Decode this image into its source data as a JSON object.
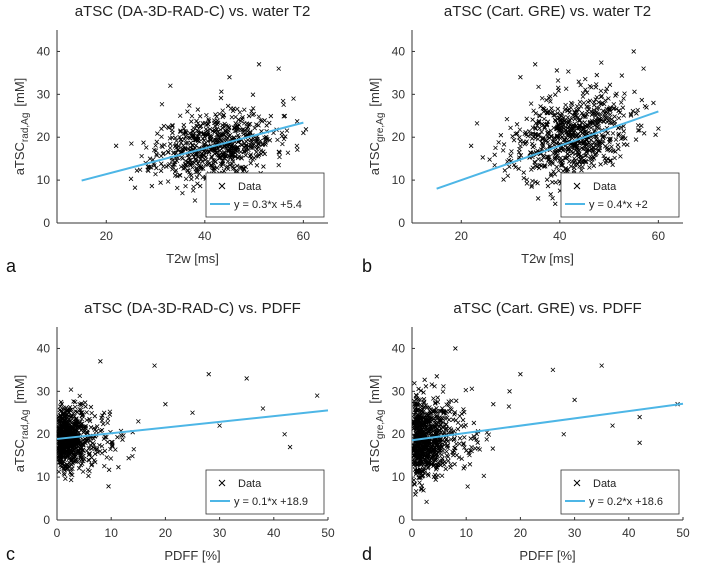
{
  "figure": {
    "panel_letters": [
      "a",
      "b",
      "c",
      "d"
    ]
  },
  "colors": {
    "data_marker": "#000000",
    "fit_line": "#4db6e6",
    "axes": "#333333",
    "background": "#ffffff"
  },
  "chart_data": [
    {
      "type": "scatter",
      "panel": "a",
      "title": "aTSC (DA-3D-RAD-C) vs. water T2",
      "xlabel": "T2w [ms]",
      "ylabel_main": "aTSC",
      "ylabel_sub": "rad,Ag",
      "ylabel_unit": "[mM]",
      "xlim": [
        10,
        65
      ],
      "ylim": [
        0,
        45
      ],
      "xticks": [
        "20",
        "40",
        "60"
      ],
      "xtick_values": [
        20,
        40,
        60
      ],
      "yticks": [
        "0",
        "10",
        "20",
        "30",
        "40"
      ],
      "ytick_values": [
        0,
        10,
        20,
        30,
        40
      ],
      "legend_data": "Data",
      "legend_fit": "y = 0.3*x +5.4",
      "legend_position": "bottom-right",
      "fit": {
        "slope": 0.3,
        "intercept": 5.4,
        "x_range": [
          15,
          60
        ]
      },
      "cloud": {
        "x_center": 42,
        "x_sd": 6,
        "y_center": 18,
        "y_sd": 4,
        "n": 700,
        "seed": 11
      },
      "outliers": [
        [
          22,
          18
        ],
        [
          28,
          14
        ],
        [
          33,
          32
        ],
        [
          55,
          36
        ],
        [
          60,
          21
        ],
        [
          51,
          37
        ],
        [
          35,
          25
        ],
        [
          45,
          34
        ],
        [
          58,
          29
        ]
      ]
    },
    {
      "type": "scatter",
      "panel": "b",
      "title": "aTSC (Cart. GRE) vs. water T2",
      "xlabel": "T2w [ms]",
      "ylabel_main": "aTSC",
      "ylabel_sub": "gre,Ag",
      "ylabel_unit": "[mM]",
      "xlim": [
        10,
        65
      ],
      "ylim": [
        0,
        45
      ],
      "xticks": [
        "20",
        "40",
        "60"
      ],
      "xtick_values": [
        20,
        40,
        60
      ],
      "yticks": [
        "0",
        "10",
        "20",
        "30",
        "40"
      ],
      "ytick_values": [
        0,
        10,
        20,
        30,
        40
      ],
      "legend_data": "Data",
      "legend_fit": "y = 0.4*x +2",
      "legend_position": "bottom-right",
      "fit": {
        "slope": 0.4,
        "intercept": 2,
        "x_range": [
          15,
          60
        ]
      },
      "cloud": {
        "x_center": 42,
        "x_sd": 6,
        "y_center": 20,
        "y_sd": 5,
        "n": 750,
        "seed": 23
      },
      "outliers": [
        [
          22,
          18
        ],
        [
          32,
          34
        ],
        [
          35,
          37
        ],
        [
          55,
          40
        ],
        [
          60,
          22
        ],
        [
          59,
          28
        ],
        [
          31,
          13
        ],
        [
          57,
          36
        ]
      ]
    },
    {
      "type": "scatter",
      "panel": "c",
      "title": "aTSC (DA-3D-RAD-C) vs. PDFF",
      "xlabel": "PDFF [%]",
      "ylabel_main": "aTSC",
      "ylabel_sub": "rad,Ag",
      "ylabel_unit": "[mM]",
      "xlim": [
        0,
        50
      ],
      "ylim": [
        0,
        45
      ],
      "xticks": [
        "0",
        "10",
        "20",
        "30",
        "40",
        "50"
      ],
      "xtick_values": [
        0,
        10,
        20,
        30,
        40,
        50
      ],
      "yticks": [
        "0",
        "10",
        "20",
        "30",
        "40"
      ],
      "ytick_values": [
        0,
        10,
        20,
        30,
        40
      ],
      "legend_data": "Data",
      "legend_fit": "y = 0.1*x +18.9",
      "legend_position": "bottom-right",
      "fit": {
        "slope": 0.133,
        "intercept": 18.9,
        "x_range": [
          0,
          50
        ]
      },
      "cloud": {
        "x_center": 2.5,
        "x_sd": 2.5,
        "y_center": 19,
        "y_sd": 3.5,
        "n": 800,
        "seed": 37
      },
      "outliers": [
        [
          8,
          37
        ],
        [
          18,
          36
        ],
        [
          28,
          34
        ],
        [
          35,
          33
        ],
        [
          43,
          17
        ],
        [
          42,
          20
        ],
        [
          48,
          29
        ],
        [
          20,
          27
        ],
        [
          30,
          22
        ],
        [
          25,
          25
        ],
        [
          15,
          23
        ],
        [
          38,
          26
        ]
      ]
    },
    {
      "type": "scatter",
      "panel": "d",
      "title": "aTSC (Cart. GRE) vs. PDFF",
      "xlabel": "PDFF [%]",
      "ylabel_main": "aTSC",
      "ylabel_sub": "gre,Ag",
      "ylabel_unit": "[mM]",
      "xlim": [
        0,
        50
      ],
      "ylim": [
        0,
        45
      ],
      "xticks": [
        "0",
        "10",
        "20",
        "30",
        "40",
        "50"
      ],
      "xtick_values": [
        0,
        10,
        20,
        30,
        40,
        50
      ],
      "yticks": [
        "0",
        "10",
        "20",
        "30",
        "40"
      ],
      "ytick_values": [
        0,
        10,
        20,
        30,
        40
      ],
      "legend_data": "Data",
      "legend_fit": "y = 0.2*x +18.6",
      "legend_position": "bottom-right",
      "fit": {
        "slope": 0.17,
        "intercept": 18.6,
        "x_range": [
          0,
          50
        ]
      },
      "cloud": {
        "x_center": 3,
        "x_sd": 3,
        "y_center": 19,
        "y_sd": 5,
        "n": 800,
        "seed": 53
      },
      "outliers": [
        [
          8,
          40
        ],
        [
          20,
          34
        ],
        [
          26,
          35
        ],
        [
          35,
          36
        ],
        [
          42,
          24
        ],
        [
          42,
          18
        ],
        [
          49,
          27
        ],
        [
          18,
          30
        ],
        [
          30,
          28
        ],
        [
          37,
          22
        ],
        [
          15,
          27
        ],
        [
          28,
          20
        ]
      ]
    }
  ]
}
